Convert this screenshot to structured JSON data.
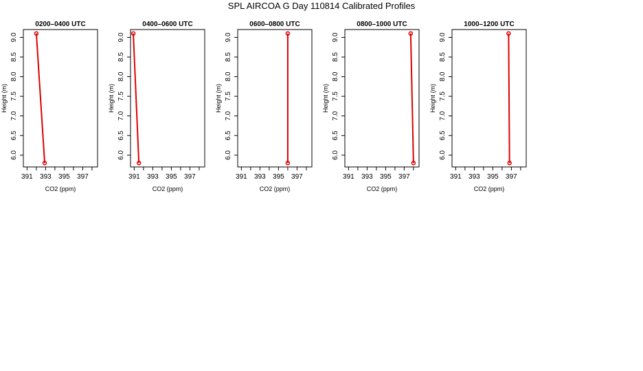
{
  "title": "SPL AIRCOA G  Day 110814  Calibrated Profiles",
  "colors": {
    "series": "#dd0000",
    "axis": "#000000"
  },
  "chart_data": [
    {
      "type": "line",
      "title": "0200–0400 UTC",
      "xlabel": "CO2 (ppm)",
      "ylabel": "Height (m)",
      "xlim": [
        390.6,
        398.6
      ],
      "ylim": [
        5.7,
        9.2
      ],
      "xticks": [
        391,
        392,
        393,
        394,
        395,
        396,
        397,
        398
      ],
      "xticklabels": [
        "391",
        "",
        "393",
        "",
        "395",
        "",
        "397",
        ""
      ],
      "yticks": [
        6.0,
        6.5,
        7.0,
        7.5,
        8.0,
        8.5,
        9.0
      ],
      "yticklabels": [
        "6.0",
        "6.5",
        "7.0",
        "7.5",
        "8.0",
        "8.5",
        "9.0"
      ],
      "grid": false,
      "series": [
        {
          "x": [
            392.0,
            392.9
          ],
          "y": [
            9.1,
            5.8
          ]
        }
      ]
    },
    {
      "type": "line",
      "title": "0400–0600 UTC",
      "xlabel": "CO2 (ppm)",
      "ylabel": "Height (m)",
      "xlim": [
        390.6,
        398.6
      ],
      "ylim": [
        5.7,
        9.2
      ],
      "xticks": [
        391,
        392,
        393,
        394,
        395,
        396,
        397,
        398
      ],
      "xticklabels": [
        "391",
        "",
        "393",
        "",
        "395",
        "",
        "397",
        ""
      ],
      "yticks": [
        6.0,
        6.5,
        7.0,
        7.5,
        8.0,
        8.5,
        9.0
      ],
      "yticklabels": [
        "6.0",
        "6.5",
        "7.0",
        "7.5",
        "8.0",
        "8.5",
        "9.0"
      ],
      "grid": false,
      "series": [
        {
          "x": [
            390.9,
            391.5
          ],
          "y": [
            9.1,
            5.8
          ]
        }
      ]
    },
    {
      "type": "line",
      "title": "0600–0800 UTC",
      "xlabel": "CO2 (ppm)",
      "ylabel": "Height (m)",
      "xlim": [
        390.6,
        398.6
      ],
      "ylim": [
        5.7,
        9.2
      ],
      "xticks": [
        391,
        392,
        393,
        394,
        395,
        396,
        397,
        398
      ],
      "xticklabels": [
        "391",
        "",
        "393",
        "",
        "395",
        "",
        "397",
        ""
      ],
      "yticks": [
        6.0,
        6.5,
        7.0,
        7.5,
        8.0,
        8.5,
        9.0
      ],
      "yticklabels": [
        "6.0",
        "6.5",
        "7.0",
        "7.5",
        "8.0",
        "8.5",
        "9.0"
      ],
      "grid": false,
      "series": [
        {
          "x": [
            396.0,
            396.0
          ],
          "y": [
            9.1,
            5.8
          ]
        }
      ]
    },
    {
      "type": "line",
      "title": "0800–1000 UTC",
      "xlabel": "CO2 (ppm)",
      "ylabel": "Height (m)",
      "xlim": [
        390.6,
        398.6
      ],
      "ylim": [
        5.7,
        9.2
      ],
      "xticks": [
        391,
        392,
        393,
        394,
        395,
        396,
        397,
        398
      ],
      "xticklabels": [
        "391",
        "",
        "393",
        "",
        "395",
        "",
        "397",
        ""
      ],
      "yticks": [
        6.0,
        6.5,
        7.0,
        7.5,
        8.0,
        8.5,
        9.0
      ],
      "yticklabels": [
        "6.0",
        "6.5",
        "7.0",
        "7.5",
        "8.0",
        "8.5",
        "9.0"
      ],
      "grid": false,
      "series": [
        {
          "x": [
            397.7,
            398.0
          ],
          "y": [
            9.1,
            5.8
          ]
        }
      ]
    },
    {
      "type": "line",
      "title": "1000–1200 UTC",
      "xlabel": "CO2 (ppm)",
      "ylabel": "Height (m)",
      "xlim": [
        390.6,
        398.6
      ],
      "ylim": [
        5.7,
        9.2
      ],
      "xticks": [
        391,
        392,
        393,
        394,
        395,
        396,
        397,
        398
      ],
      "xticklabels": [
        "391",
        "",
        "393",
        "",
        "395",
        "",
        "397",
        ""
      ],
      "yticks": [
        6.0,
        6.5,
        7.0,
        7.5,
        8.0,
        8.5,
        9.0
      ],
      "yticklabels": [
        "6.0",
        "6.5",
        "7.0",
        "7.5",
        "8.0",
        "8.5",
        "9.0"
      ],
      "grid": false,
      "series": [
        {
          "x": [
            396.7,
            396.8
          ],
          "y": [
            9.1,
            5.8
          ]
        }
      ]
    }
  ]
}
